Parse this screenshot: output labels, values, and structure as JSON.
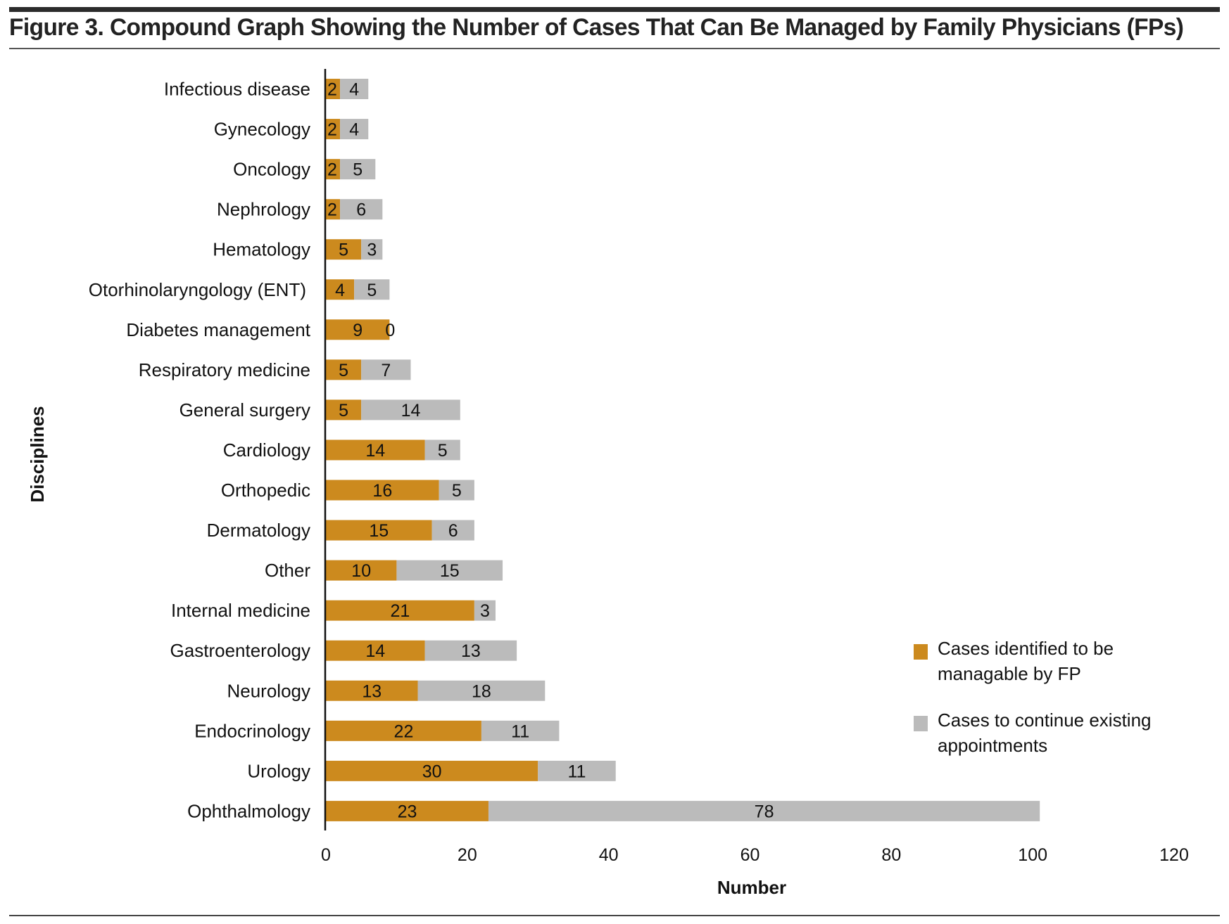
{
  "figure": {
    "title": "Figure 3. Compound Graph Showing the Number of Cases That Can Be Managed by Family Physicians (FPs)"
  },
  "colors": {
    "fp_manageable": "#CC8A1E",
    "continue_existing": "#BBBBBB"
  },
  "chart_data": {
    "type": "bar",
    "orientation": "horizontal",
    "stacked": true,
    "title": "Figure 3. Compound Graph Showing the Number of Cases That Can Be Managed by Family Physicians (FPs)",
    "xlabel": "Number",
    "ylabel": "Disciplines",
    "xlim": [
      0,
      120
    ],
    "xticks": [
      0,
      20,
      40,
      60,
      80,
      100,
      120
    ],
    "grid": false,
    "legend_position": "bottom-right",
    "categories": [
      "Infectious disease",
      "Gynecology",
      "Oncology",
      "Nephrology",
      "Hematology",
      "Otorhinolaryngology (ENT)",
      "Diabetes management",
      "Respiratory medicine",
      "General surgery",
      "Cardiology",
      "Orthopedic",
      "Dermatology",
      "Other",
      "Internal medicine",
      "Gastroenterology",
      "Neurology",
      "Endocrinology",
      "Urology",
      "Ophthalmology"
    ],
    "series": [
      {
        "name": "Cases identified to be managable by FP",
        "color": "#CC8A1E",
        "values": [
          2,
          2,
          2,
          2,
          5,
          4,
          9,
          5,
          5,
          14,
          16,
          15,
          10,
          21,
          14,
          13,
          22,
          30,
          23
        ]
      },
      {
        "name": "Cases to continue existing appointments",
        "color": "#BBBBBB",
        "values": [
          4,
          4,
          5,
          6,
          3,
          5,
          0,
          7,
          14,
          5,
          5,
          6,
          15,
          3,
          13,
          18,
          11,
          11,
          78
        ]
      }
    ]
  }
}
